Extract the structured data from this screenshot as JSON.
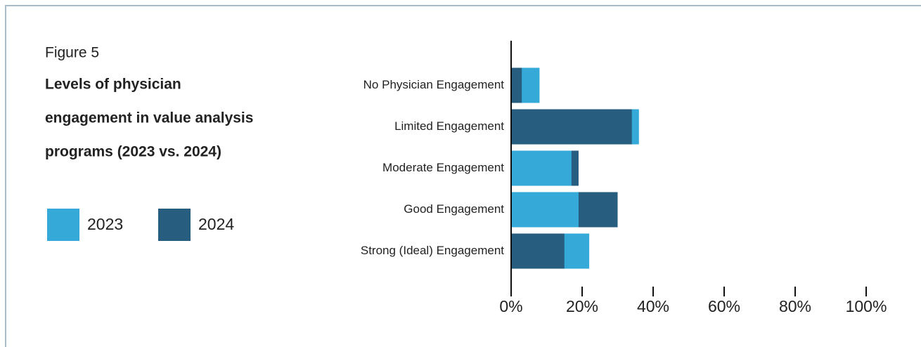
{
  "chart_data": {
    "type": "overlap-bar-horizontal",
    "figure_label": "Figure 5",
    "title": [
      "Levels of physician",
      "engagement in value analysis",
      "programs (2023 vs. 2024)"
    ],
    "categories": [
      "No Physician Engagement",
      "Limited Engagement",
      "Moderate Engagement",
      "Good Engagement",
      "Strong (Ideal) Engagement"
    ],
    "series": [
      {
        "name": "2023",
        "color": "#35a9d8",
        "values": [
          8,
          36,
          17,
          19,
          22
        ]
      },
      {
        "name": "2024",
        "color": "#275d7e",
        "values": [
          3,
          34,
          19,
          30,
          15
        ]
      }
    ],
    "xlim": [
      0,
      100
    ],
    "xticks": [
      {
        "value": 0,
        "label": "0%"
      },
      {
        "value": 20,
        "label": "20%"
      },
      {
        "value": 40,
        "label": "40%"
      },
      {
        "value": 60,
        "label": "60%"
      },
      {
        "value": 80,
        "label": "80%"
      },
      {
        "value": 100,
        "label": "100%"
      }
    ]
  }
}
